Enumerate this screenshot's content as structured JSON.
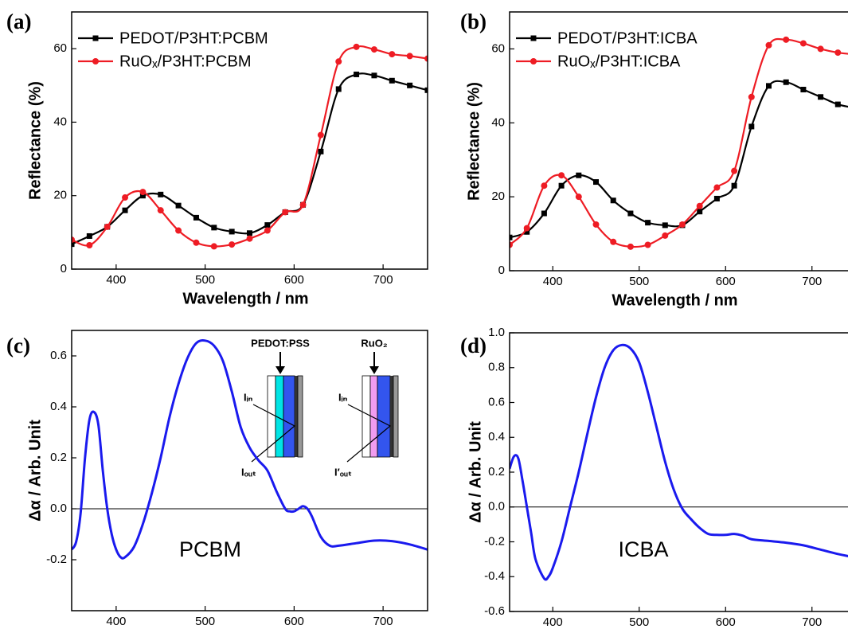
{
  "chart_data": [
    {
      "type": "line",
      "panel": "(a)",
      "xlabel": "Wavelength / nm",
      "ylabel": "Reflectance (%)",
      "legend": "upper left",
      "x": [
        350,
        370,
        390,
        410,
        430,
        450,
        470,
        490,
        510,
        530,
        550,
        570,
        590,
        610,
        630,
        650,
        670,
        690,
        710,
        730,
        750
      ],
      "series": [
        {
          "name": "PEDOT/P3HT:PCBM",
          "color": "#000000",
          "marker": "square",
          "values": [
            6.8,
            9,
            11.5,
            16,
            20,
            20.3,
            17.3,
            14,
            11.3,
            10.2,
            9.8,
            12,
            15.5,
            17.5,
            32,
            49,
            53,
            52.7,
            51.3,
            50,
            48.7
          ]
        },
        {
          "name": "RuOₓ/P3HT:PCBM",
          "color": "#ee1c24",
          "marker": "circle",
          "values": [
            8,
            6.5,
            11.5,
            19.5,
            21,
            16,
            10.5,
            7.2,
            6.2,
            6.7,
            8.3,
            10.5,
            15.5,
            17.5,
            36.5,
            56.5,
            60.5,
            59.8,
            58.5,
            58,
            57.3
          ]
        }
      ],
      "xlim": [
        350,
        750
      ],
      "xticks": [
        400,
        500,
        600,
        700
      ],
      "ylim": [
        0,
        70
      ],
      "yticks": [
        0,
        20,
        40,
        60
      ]
    },
    {
      "type": "line",
      "panel": "(b)",
      "xlabel": "Wavelength / nm",
      "ylabel": "Reflectance (%)",
      "legend": "upper left",
      "x": [
        350,
        370,
        390,
        410,
        430,
        450,
        470,
        490,
        510,
        530,
        550,
        570,
        590,
        610,
        630,
        650,
        670,
        690,
        710,
        730,
        750
      ],
      "series": [
        {
          "name": "PEDOT/P3HT:ICBA",
          "color": "#000000",
          "marker": "square",
          "values": [
            9,
            10.5,
            15.5,
            23,
            25.8,
            24,
            19,
            15.5,
            13,
            12.3,
            12.3,
            16,
            19.5,
            23,
            39,
            50,
            51,
            49,
            47,
            45,
            44
          ]
        },
        {
          "name": "RuOₓ/P3HT:ICBA",
          "color": "#ee1c24",
          "marker": "circle",
          "values": [
            7,
            11.5,
            23,
            25.8,
            20,
            12.5,
            7.8,
            6.5,
            7,
            9.5,
            12.5,
            17.5,
            22.5,
            27,
            47,
            61,
            62.5,
            61.5,
            60,
            59,
            58.5
          ]
        }
      ],
      "xlim": [
        350,
        750
      ],
      "xticks": [
        400,
        500,
        600,
        700
      ],
      "ylim": [
        0,
        70
      ],
      "yticks": [
        0,
        20,
        40,
        60
      ]
    },
    {
      "type": "line",
      "panel": "(c)",
      "xlabel": "Wavelength / nm",
      "ylabel": "Δα / Arb. Unit",
      "zero_line": true,
      "annotations": [
        "PCBM"
      ],
      "inset": [
        "PEDOT:PSS",
        "Iᵢₙ",
        "Iₒᵤₜ",
        "RuO₂",
        "Iᵢₙ",
        "I′ₒᵤₜ"
      ],
      "x": [
        350,
        355,
        360,
        365,
        370,
        375,
        380,
        385,
        390,
        395,
        400,
        405,
        410,
        420,
        430,
        440,
        450,
        460,
        470,
        480,
        490,
        500,
        510,
        520,
        530,
        540,
        550,
        560,
        570,
        580,
        590,
        595,
        600,
        605,
        610,
        615,
        620,
        630,
        640,
        650,
        670,
        690,
        710,
        730,
        750
      ],
      "series": [
        {
          "name": null,
          "color": "#1a1aee",
          "values": [
            -0.16,
            -0.13,
            -0.02,
            0.2,
            0.35,
            0.38,
            0.33,
            0.15,
            0,
            -0.1,
            -0.16,
            -0.19,
            -0.19,
            -0.15,
            -0.06,
            0.06,
            0.2,
            0.36,
            0.49,
            0.59,
            0.65,
            0.66,
            0.64,
            0.58,
            0.46,
            0.32,
            0.24,
            0.19,
            0.15,
            0.07,
            0,
            -0.01,
            -0.01,
            0,
            0.01,
            0,
            -0.03,
            -0.11,
            -0.145,
            -0.145,
            -0.135,
            -0.125,
            -0.127,
            -0.14,
            -0.16
          ]
        }
      ],
      "xlim": [
        350,
        750
      ],
      "xticks": [
        400,
        500,
        600,
        700
      ],
      "ylim": [
        -0.4,
        0.7
      ],
      "yticks": [
        -0.2,
        {
          "value": 0,
          "label": "0.0"
        },
        0.2,
        0.4,
        0.6
      ]
    },
    {
      "type": "line",
      "panel": "(d)",
      "xlabel": "Wavelength / nm",
      "ylabel": "Δα / Arb. Unit",
      "zero_line": true,
      "annotations": [
        "ICBA"
      ],
      "x": [
        350,
        355,
        360,
        365,
        370,
        375,
        380,
        390,
        395,
        400,
        410,
        420,
        430,
        440,
        450,
        460,
        470,
        480,
        490,
        500,
        510,
        520,
        530,
        540,
        550,
        560,
        570,
        580,
        590,
        600,
        610,
        620,
        630,
        650,
        670,
        690,
        710,
        730,
        750
      ],
      "series": [
        {
          "name": null,
          "color": "#1a1aee",
          "values": [
            0.22,
            0.29,
            0.28,
            0.15,
            0,
            -0.15,
            -0.3,
            -0.41,
            -0.4,
            -0.35,
            -0.2,
            0,
            0.2,
            0.42,
            0.63,
            0.8,
            0.9,
            0.93,
            0.91,
            0.83,
            0.66,
            0.46,
            0.26,
            0.1,
            -0.01,
            -0.07,
            -0.12,
            -0.155,
            -0.16,
            -0.16,
            -0.155,
            -0.165,
            -0.185,
            -0.195,
            -0.205,
            -0.22,
            -0.245,
            -0.27,
            -0.29
          ]
        }
      ],
      "xlim": [
        350,
        750
      ],
      "xticks": [
        400,
        500,
        600,
        700
      ],
      "ylim": [
        -0.6,
        1.0
      ],
      "yticks": [
        -0.6,
        -0.4,
        -0.2,
        {
          "value": 0,
          "label": "0.0"
        },
        0.2,
        0.4,
        0.6,
        0.8,
        {
          "value": 1,
          "label": "1.0"
        }
      ]
    }
  ]
}
